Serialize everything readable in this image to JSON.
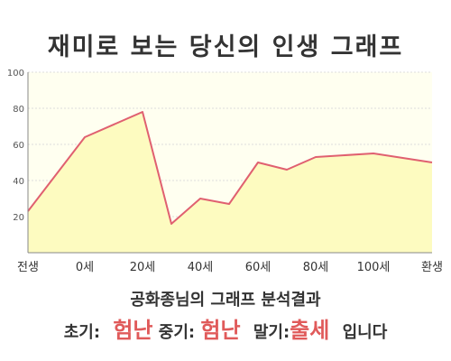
{
  "title": "재미로 보는 당신의 인생 그래프",
  "chart_data": {
    "type": "area",
    "y_ticks": [
      20,
      40,
      60,
      80,
      100
    ],
    "ylim": [
      0,
      100
    ],
    "x_labels": [
      "전생",
      "0세",
      "20세",
      "40세",
      "60세",
      "80세",
      "100세",
      "환생"
    ],
    "points": [
      {
        "x": "전생",
        "y": 23
      },
      {
        "x": "0세",
        "y": 64
      },
      {
        "x": "20세",
        "y": 78
      },
      {
        "x": "30세",
        "y": 16
      },
      {
        "x": "35세",
        "y": 30
      },
      {
        "x": "50세",
        "y": 27
      },
      {
        "x": "60세",
        "y": 50
      },
      {
        "x": "70세",
        "y": 46
      },
      {
        "x": "80세",
        "y": 53
      },
      {
        "x": "100세",
        "y": 55
      },
      {
        "x": "환생",
        "y": 50
      }
    ],
    "grid": true,
    "colors": {
      "line": "#e06070",
      "fill": "#fdfbc0",
      "plot_bg": "#fffff0",
      "grid": "#dddddd"
    }
  },
  "result": {
    "summary": "공화종님의 그래프 분석결과",
    "early_label": "초기:",
    "early_value": "험난",
    "mid_label": "중기:",
    "mid_value": "험난",
    "late_label": "말기:",
    "late_value": "출세",
    "ending": "입니다"
  }
}
